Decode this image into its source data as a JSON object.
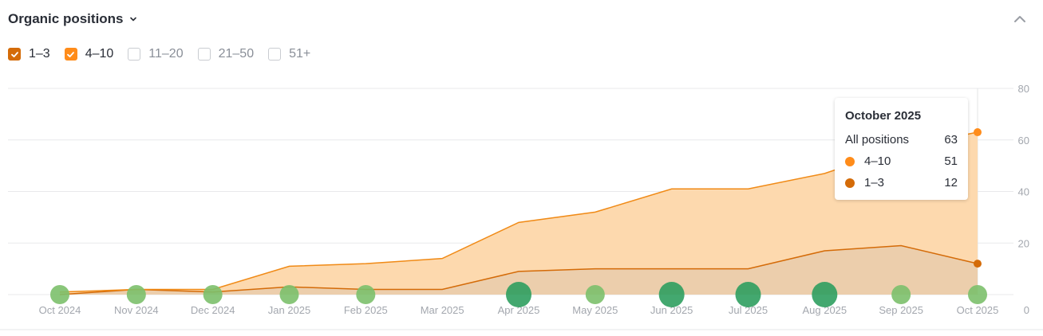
{
  "header": {
    "title": "Organic positions",
    "dropdown_icon": "chevron-down-icon",
    "collapse_icon": "chevron-up-icon"
  },
  "filters": [
    {
      "label": "1–3",
      "checked": true,
      "color": "#d46b08"
    },
    {
      "label": "4–10",
      "checked": true,
      "color": "#ff8c1a"
    },
    {
      "label": "11–20",
      "checked": false,
      "color": ""
    },
    {
      "label": "21–50",
      "checked": false,
      "color": ""
    },
    {
      "label": "51+",
      "checked": false,
      "color": ""
    }
  ],
  "tooltip": {
    "title": "October 2025",
    "rows": [
      {
        "label": "All positions",
        "value": "63",
        "color": ""
      },
      {
        "label": "4–10",
        "value": "51",
        "color": "#ff8c1a"
      },
      {
        "label": "1–3",
        "value": "12",
        "color": "#d46b08"
      }
    ]
  },
  "colors": {
    "top_area": "#fdd9ae",
    "top_line": "#f08a16",
    "bottom_area": "#ecceac",
    "bottom_line": "#d46b08",
    "marker_light": "#7cc06b",
    "marker_dark": "#2f9e5f",
    "grid": "#e8e9eb",
    "axis_text": "#a3a7ae"
  },
  "chart_data": {
    "type": "area",
    "title": "Organic positions",
    "categories": [
      "Oct 2024",
      "Nov 2024",
      "Dec 2024",
      "Jan 2025",
      "Feb 2025",
      "Mar 2025",
      "Apr 2025",
      "May 2025",
      "Jun 2025",
      "Jul 2025",
      "Aug 2025",
      "Sep 2025",
      "Oct 2025"
    ],
    "stacked": true,
    "series": [
      {
        "name": "1–3",
        "values": [
          0,
          2,
          1,
          3,
          2,
          2,
          9,
          10,
          10,
          10,
          17,
          19,
          12
        ]
      },
      {
        "name": "4–10",
        "values": [
          1,
          0,
          1,
          8,
          10,
          12,
          19,
          22,
          31,
          31,
          30,
          38,
          51
        ]
      }
    ],
    "totals": [
      1,
      2,
      2,
      11,
      12,
      14,
      28,
      32,
      41,
      41,
      47,
      57,
      63
    ],
    "event_markers": [
      {
        "x": "Oct 2024",
        "size": "small"
      },
      {
        "x": "Nov 2024",
        "size": "small"
      },
      {
        "x": "Dec 2024",
        "size": "small"
      },
      {
        "x": "Jan 2025",
        "size": "small"
      },
      {
        "x": "Feb 2025",
        "size": "small"
      },
      {
        "x": "Apr 2025",
        "size": "large"
      },
      {
        "x": "May 2025",
        "size": "small"
      },
      {
        "x": "Jun 2025",
        "size": "large"
      },
      {
        "x": "Jul 2025",
        "size": "large"
      },
      {
        "x": "Aug 2025",
        "size": "large"
      },
      {
        "x": "Sep 2025",
        "size": "small"
      },
      {
        "x": "Oct 2025",
        "size": "small"
      }
    ],
    "yticks": [
      0,
      20,
      40,
      60,
      80
    ],
    "ylim": [
      0,
      80
    ],
    "y_axis_position": "right",
    "grid": true,
    "xlabel": "",
    "ylabel": ""
  }
}
